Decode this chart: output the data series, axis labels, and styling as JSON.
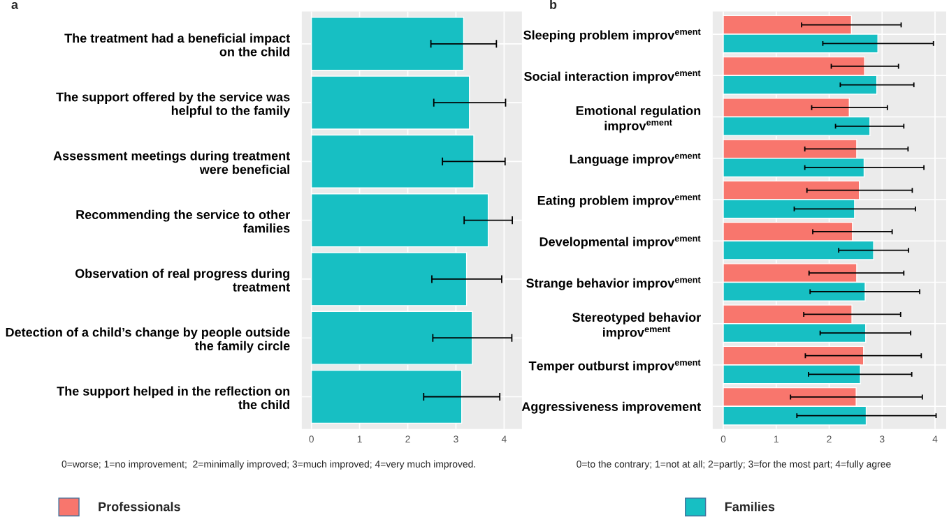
{
  "chart_data": [
    {
      "type": "bar",
      "orientation": "horizontal",
      "title": "a",
      "categories": [
        "The treatment had a beneficial impact\non the child",
        "The support offered by the service was\nhelpful to the family",
        "Assessment meetings during treatment\nwere beneficial",
        "Recommending the service to other\nfamilies",
        "Observation of real progress during\ntreatment",
        "Detection of a child’s change by people outside\nthe family circle",
        "The support helped in the reflection on\nthe child"
      ],
      "series": [
        {
          "color": "#17bfc3",
          "values": [
            3.16,
            3.28,
            3.37,
            3.67,
            3.22,
            3.34,
            3.12
          ],
          "errors": [
            [
              2.48,
              3.84
            ],
            [
              2.54,
              4.03
            ],
            [
              2.72,
              4.02
            ],
            [
              3.17,
              4.17
            ],
            [
              2.5,
              3.95
            ],
            [
              2.52,
              4.16
            ],
            [
              2.33,
              3.91
            ]
          ]
        }
      ],
      "xlim": [
        -0.2,
        4.37
      ],
      "xticks": [
        0,
        1,
        2,
        3,
        4
      ],
      "grid": true,
      "annotations": [
        "0=worse; 1=no improvement;  2=minimally improved; 3=much improved; 4=very much improved."
      ]
    },
    {
      "type": "bar",
      "orientation": "horizontal",
      "title": "b",
      "categories": [
        "Sleeping problem improv$^{ement}$",
        "Social interaction improv$^{ement}$",
        "Emotional regulation\nimprov$^{ement}$",
        "Language improv$^{ement}$",
        "Eating problem improv$^{ement}$",
        "Developmental improv$^{ement}$",
        "Strange behavior improv$^{ement}$",
        "Stereotyped behavior\nimprov$^{ement}$",
        "Temper outburst improv$^{ement}$",
        "Aggressiveness improvement"
      ],
      "series": [
        {
          "name": "Professionals",
          "color": "#f8766d",
          "values": [
            2.42,
            2.67,
            2.38,
            2.52,
            2.57,
            2.44,
            2.52,
            2.43,
            2.65,
            2.51
          ],
          "errors": [
            [
              1.48,
              3.36
            ],
            [
              2.04,
              3.31
            ],
            [
              1.67,
              3.1
            ],
            [
              1.54,
              3.49
            ],
            [
              1.58,
              3.57
            ],
            [
              1.69,
              3.19
            ],
            [
              1.62,
              3.41
            ],
            [
              1.52,
              3.35
            ],
            [
              1.55,
              3.74
            ],
            [
              1.27,
              3.76
            ]
          ]
        },
        {
          "name": "Families",
          "color": "#17bfc3",
          "values": [
            2.92,
            2.9,
            2.77,
            2.66,
            2.48,
            2.84,
            2.68,
            2.69,
            2.59,
            2.7
          ],
          "errors": [
            [
              1.88,
              3.97
            ],
            [
              2.21,
              3.6
            ],
            [
              2.12,
              3.41
            ],
            [
              1.54,
              3.79
            ],
            [
              1.34,
              3.63
            ],
            [
              2.18,
              3.5
            ],
            [
              1.64,
              3.71
            ],
            [
              1.83,
              3.54
            ],
            [
              1.61,
              3.56
            ],
            [
              1.39,
              4.02
            ]
          ]
        }
      ],
      "xlim": [
        -0.2,
        4.21
      ],
      "xticks": [
        0,
        1,
        2,
        3,
        4
      ],
      "grid": true,
      "legend": "bottom",
      "annotations": [
        "0=to the contrary; 1=not at all; 2=partly; 3=for the most part; 4=fully agree"
      ]
    }
  ]
}
